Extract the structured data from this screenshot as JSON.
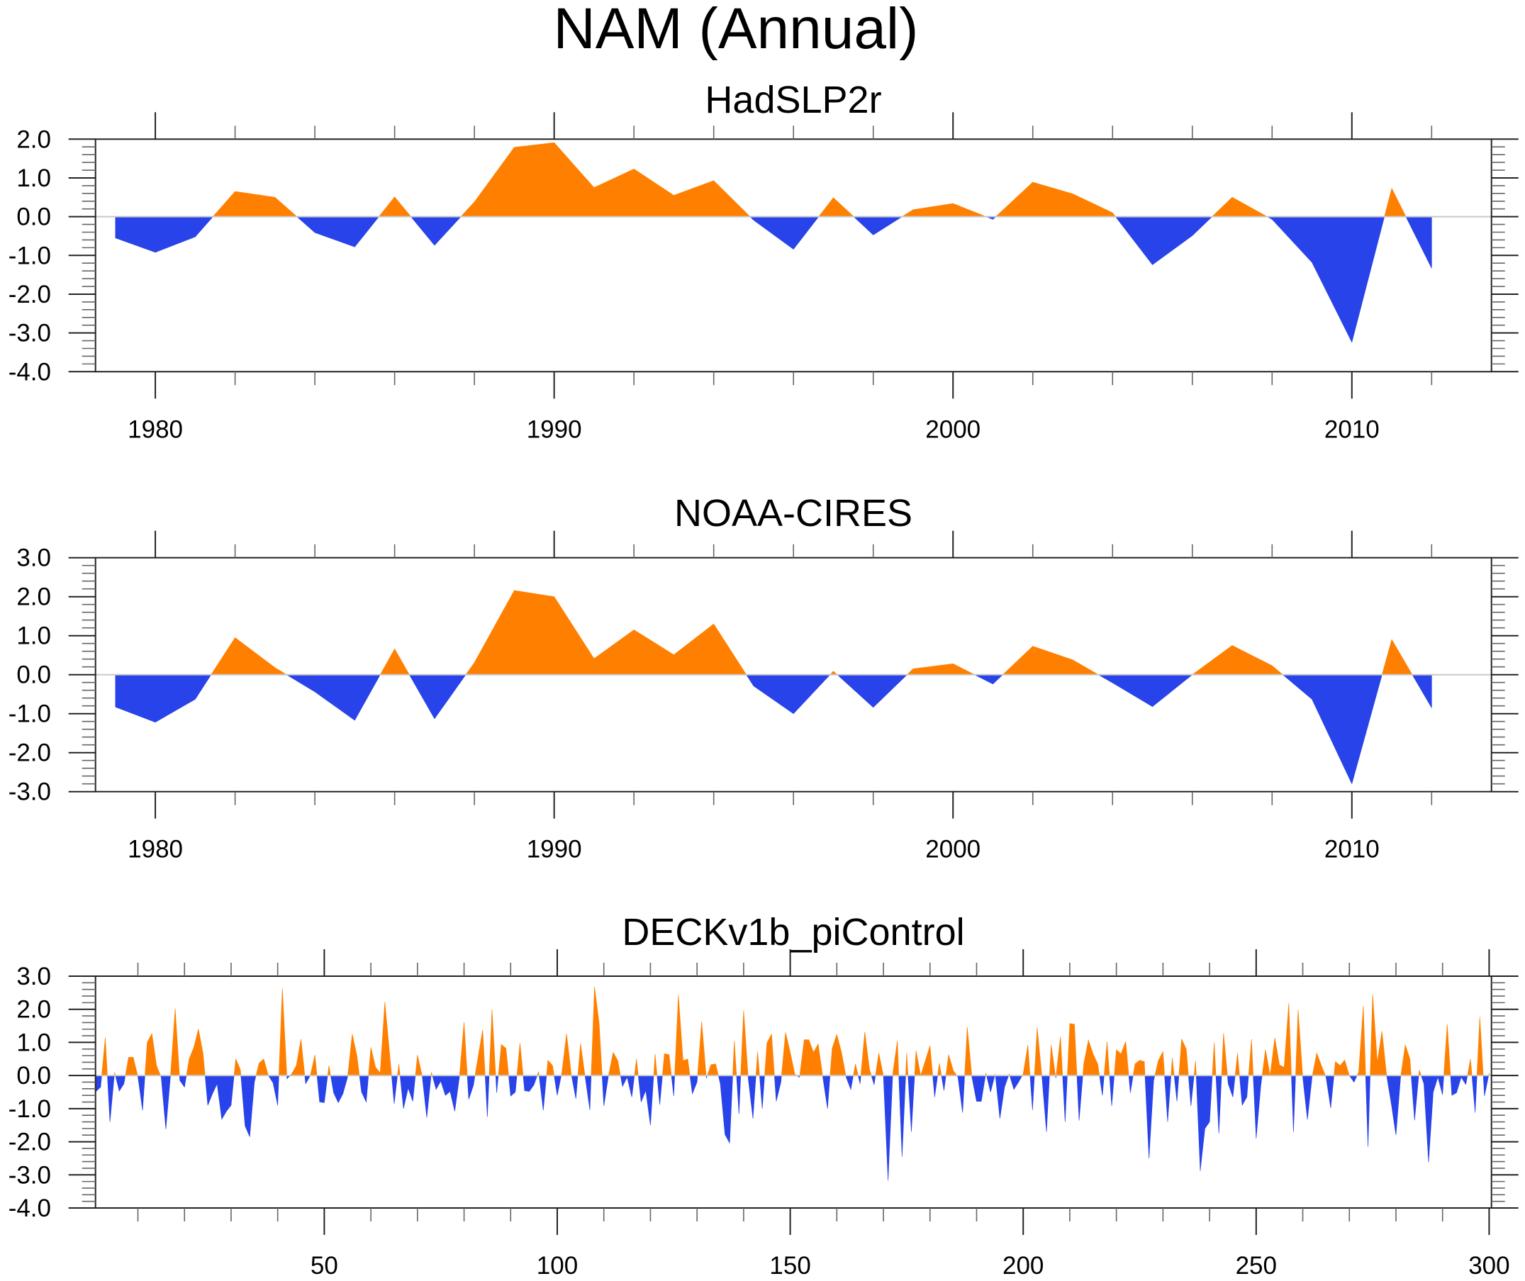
{
  "figure": {
    "title": "NAM (Annual)"
  },
  "colors": {
    "positive": "#ff8000",
    "negative": "#2843e9",
    "reference_line": "#c8c8c8",
    "axes": "#222222"
  },
  "chart_data": [
    {
      "type": "area",
      "title": "HadSLP2r",
      "xlabel": "",
      "ylabel": "",
      "reference_value": 0.0,
      "fill_above": "positive",
      "fill_below": "negative",
      "xlim": [
        1978.5,
        2013.5
      ],
      "ylim": [
        -4.0,
        2.0
      ],
      "x_major_ticks": [
        1980,
        1990,
        2000,
        2010
      ],
      "x_tick_labels": [
        "1980",
        "1990",
        "2000",
        "2010"
      ],
      "x_minor_step": 2,
      "y_major_ticks": [
        2.0,
        1.0,
        0.0,
        -1.0,
        -2.0,
        -3.0,
        -4.0
      ],
      "y_tick_labels": [
        "2.0",
        "1.0",
        "0.0",
        "-1.0",
        "-2.0",
        "-3.0",
        "-4.0"
      ],
      "y_minor_step": 0.2,
      "grid": false,
      "x": [
        1979,
        1980,
        1981,
        1982,
        1983,
        1984,
        1985,
        1986,
        1987,
        1988,
        1989,
        1990,
        1991,
        1992,
        1993,
        1994,
        1995,
        1996,
        1997,
        1998,
        1999,
        2000,
        2001,
        2002,
        2003,
        2004,
        2005,
        2006,
        2007,
        2008,
        2009,
        2010,
        2011,
        2012
      ],
      "values": [
        -0.55,
        -0.92,
        -0.52,
        0.65,
        0.5,
        -0.41,
        -0.78,
        0.51,
        -0.74,
        0.38,
        1.79,
        1.91,
        0.75,
        1.23,
        0.55,
        0.93,
        -0.09,
        -0.84,
        0.49,
        -0.47,
        0.18,
        0.34,
        -0.07,
        0.89,
        0.59,
        0.1,
        -1.24,
        -0.49,
        0.5,
        -0.07,
        -1.18,
        -3.24,
        0.73,
        -1.33
      ]
    },
    {
      "type": "area",
      "title": "NOAA-CIRES",
      "xlabel": "",
      "ylabel": "",
      "reference_value": 0.0,
      "fill_above": "positive",
      "fill_below": "negative",
      "xlim": [
        1978.5,
        2013.5
      ],
      "ylim": [
        -3.0,
        3.0
      ],
      "x_major_ticks": [
        1980,
        1990,
        2000,
        2010
      ],
      "x_tick_labels": [
        "1980",
        "1990",
        "2000",
        "2010"
      ],
      "x_minor_step": 2,
      "y_major_ticks": [
        3.0,
        2.0,
        1.0,
        0.0,
        -1.0,
        -2.0,
        -3.0
      ],
      "y_tick_labels": [
        "3.0",
        "2.0",
        "1.0",
        "0.0",
        "-1.0",
        "-2.0",
        "-3.0"
      ],
      "y_minor_step": 0.2,
      "grid": false,
      "x": [
        1979,
        1980,
        1981,
        1982,
        1983,
        1984,
        1985,
        1986,
        1987,
        1988,
        1989,
        1990,
        1991,
        1992,
        1993,
        1994,
        1995,
        1996,
        1997,
        1998,
        1999,
        2000,
        2001,
        2002,
        2003,
        2004,
        2005,
        2006,
        2007,
        2008,
        2009,
        2010,
        2011,
        2012
      ],
      "values": [
        -0.83,
        -1.22,
        -0.63,
        0.95,
        0.18,
        -0.44,
        -1.17,
        0.66,
        -1.13,
        0.31,
        2.16,
        2.0,
        0.41,
        1.15,
        0.51,
        1.3,
        -0.29,
        -1.0,
        0.09,
        -0.84,
        0.15,
        0.28,
        -0.24,
        0.73,
        0.38,
        -0.21,
        -0.82,
        0.0,
        0.75,
        0.23,
        -0.63,
        -2.8,
        0.9,
        -0.85
      ]
    },
    {
      "type": "area",
      "title": "DECKv1b_piControl",
      "xlabel": "",
      "ylabel": "",
      "reference_value": 0.0,
      "fill_above": "positive",
      "fill_below": "negative",
      "xlim": [
        0.9,
        300.5
      ],
      "ylim": [
        -4.0,
        3.0
      ],
      "x_major_ticks": [
        50,
        100,
        150,
        200,
        250,
        300
      ],
      "x_tick_labels": [
        "50",
        "100",
        "150",
        "200",
        "250",
        "300"
      ],
      "x_minor_step": 10,
      "y_major_ticks": [
        3.0,
        2.0,
        1.0,
        0.0,
        -1.0,
        -2.0,
        -3.0,
        -4.0
      ],
      "y_tick_labels": [
        "3.0",
        "2.0",
        "1.0",
        "0.0",
        "-1.0",
        "-2.0",
        "-3.0",
        "-4.0"
      ],
      "y_minor_step": 0.2,
      "grid": false,
      "x_start": 1,
      "values": [
        -0.48,
        -0.35,
        1.15,
        -1.4,
        0.1,
        -0.47,
        -0.25,
        0.55,
        0.55,
        -0.03,
        -1.05,
        1.0,
        1.27,
        0.3,
        -0.05,
        -1.62,
        0.0,
        2.02,
        -0.15,
        -0.35,
        0.5,
        0.85,
        1.4,
        0.65,
        -0.9,
        -0.55,
        -0.25,
        -1.32,
        -1.08,
        -0.9,
        0.5,
        0.18,
        -1.52,
        -1.85,
        -0.2,
        0.37,
        0.5,
        0.0,
        -0.22,
        -0.9,
        2.63,
        -0.1,
        0.05,
        0.3,
        1.1,
        -0.25,
        0.0,
        0.62,
        -0.8,
        -0.82,
        0.3,
        -0.52,
        -0.82,
        -0.55,
        -0.05,
        1.25,
        0.6,
        -0.5,
        -0.8,
        0.85,
        0.25,
        0.08,
        2.22,
        0.7,
        -0.85,
        0.35,
        -1.0,
        -0.38,
        -0.78,
        0.62,
        0.0,
        -1.27,
        0.1,
        -0.42,
        -0.17,
        -0.6,
        -0.48,
        -1.08,
        -0.05,
        1.61,
        -0.72,
        -0.3,
        0.55,
        1.38,
        -1.25,
        2.0,
        -0.52,
        0.94,
        0.82,
        -0.62,
        -0.5,
        0.98,
        -0.46,
        -0.48,
        -0.28,
        0.12,
        -1.05,
        0.46,
        0.3,
        -0.6,
        0.1,
        1.26,
        0.05,
        -0.7,
        0.97,
        -0.05,
        -1.04,
        2.68,
        1.57,
        -0.92,
        0.0,
        0.7,
        0.45,
        -0.33,
        -0.05,
        -0.65,
        0.5,
        -0.8,
        -0.45,
        -1.5,
        0.65,
        -0.88,
        0.66,
        0.63,
        -0.62,
        2.43,
        0.45,
        0.5,
        -0.55,
        -0.2,
        1.63,
        -0.08,
        0.33,
        0.35,
        -0.25,
        -1.78,
        -2.04,
        1.05,
        -1.16,
        1.97,
        -0.1,
        -1.3,
        0.72,
        -1.0,
        0.98,
        1.25,
        -0.78,
        -0.2,
        1.3,
        0.7,
        0.03,
        -0.05,
        1.08,
        1.08,
        0.7,
        0.95,
        -0.05,
        -1.0,
        0.82,
        1.24,
        0.7,
        -0.05,
        -0.42,
        0.35,
        -0.25,
        1.32,
        0.2,
        -0.28,
        0.68,
        0.0,
        -3.17,
        0.05,
        1.05,
        -2.45,
        0.68,
        -1.7,
        0.75,
        0.0,
        0.45,
        0.9,
        -0.65,
        0.37,
        -0.45,
        0.63,
        0.15,
        -0.05,
        -1.12,
        1.46,
        -0.05,
        -0.78,
        -0.78,
        0.08,
        -0.5,
        0.05,
        -1.3,
        -0.35,
        0.05,
        -0.42,
        -0.2,
        0.05,
        0.92,
        -1.04,
        1.45,
        0.0,
        -1.7,
        0.93,
        -0.08,
        1.18,
        -1.4,
        1.57,
        1.55,
        -1.36,
        0.35,
        1.07,
        0.65,
        0.35,
        -0.6,
        1.03,
        -0.92,
        0.78,
        0.65,
        1.03,
        -0.52,
        0.35,
        0.46,
        0.42,
        -2.5,
        -0.15,
        0.45,
        0.72,
        -1.4,
        0.53,
        -0.78,
        1.1,
        0.8,
        -0.92,
        0.45,
        -2.88,
        -1.6,
        -1.4,
        1.0,
        -1.75,
        1.28,
        -0.25,
        -0.65,
        0.68,
        -0.9,
        -0.65,
        1.1,
        -1.9,
        -0.3,
        0.78,
        0.0,
        1.14,
        0.32,
        0.25,
        2.18,
        -1.7,
        1.98,
        -0.05,
        -1.33,
        -0.05,
        0.68,
        0.3,
        -0.05,
        -0.98,
        0.42,
        0.3,
        0.47,
        0.0,
        -0.2,
        0.1,
        2.1,
        -2.15,
        2.45,
        0.4,
        1.34,
        0.0,
        -0.85,
        -1.8,
        -0.05,
        0.93,
        0.5,
        -1.35,
        0.17,
        -0.25,
        -2.62,
        -0.5,
        -0.05,
        -0.58,
        1.55,
        -0.6,
        -0.52,
        -0.05,
        -0.27,
        0.5,
        -1.12,
        1.77,
        -0.62,
        0.08
      ]
    }
  ]
}
